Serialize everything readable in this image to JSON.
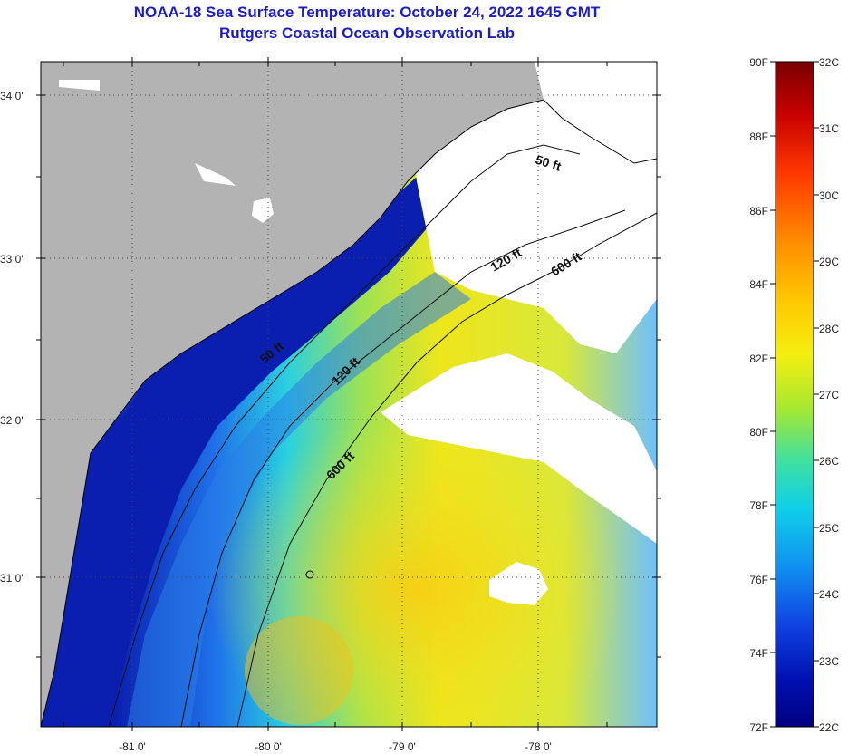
{
  "header": {
    "title_line1": "NOAA-18 Sea Surface Temperature:  October 24, 2022 1645 GMT",
    "title_line2": "Rutgers Coastal Ocean Observation Lab"
  },
  "map": {
    "lat_labels": [
      "34 0'",
      "33 0'",
      "32 0'",
      "31 0'"
    ],
    "lon_labels": [
      "-81 0'",
      "-80 0'",
      "-79 0'",
      "-78 0'"
    ],
    "contour_labels": [
      "50 ft",
      "120 ft",
      "600 ft",
      "50 ft",
      "120 ft",
      "600 ft"
    ],
    "colors": {
      "land": "#b3b3b3",
      "cloud": "#ffffff",
      "warm": "#f2e21a",
      "cool": "#0a1fb0"
    }
  },
  "colorbar": {
    "fahrenheit": [
      "90F",
      "88F",
      "86F",
      "84F",
      "82F",
      "80F",
      "78F",
      "76F",
      "74F",
      "72F"
    ],
    "celsius": [
      "32C",
      "31C",
      "30C",
      "29C",
      "28C",
      "27C",
      "26C",
      "25C",
      "24C",
      "23C",
      "22C"
    ],
    "gradient": [
      "#7a0000",
      "#c80000",
      "#ff3a00",
      "#ff8c00",
      "#ffc800",
      "#f5ee10",
      "#a8e830",
      "#40e0a0",
      "#10d0e8",
      "#1090f0",
      "#1040e0",
      "#0010b0",
      "#000080"
    ]
  }
}
